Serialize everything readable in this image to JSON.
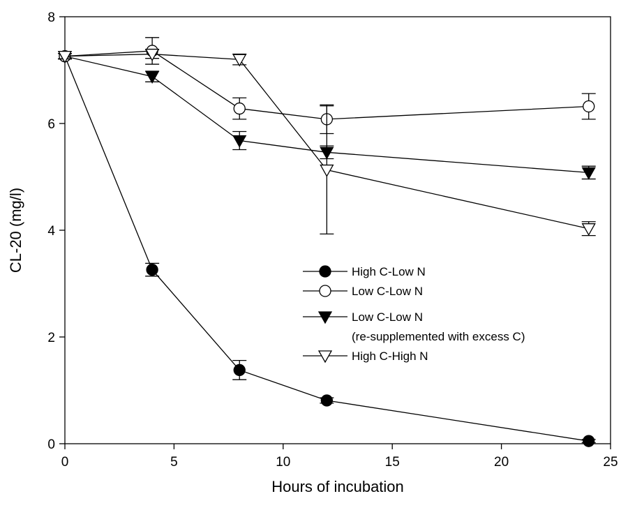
{
  "chart_data": {
    "type": "line",
    "title": "",
    "xlabel": "Hours of incubation",
    "ylabel": "CL-20 (mg/l)",
    "xlim": [
      0,
      25
    ],
    "ylim": [
      0,
      8
    ],
    "xticks": [
      0,
      5,
      10,
      15,
      20,
      25
    ],
    "yticks": [
      0,
      2,
      4,
      6,
      8
    ],
    "grid": false,
    "legend_position": "center-right",
    "series": [
      {
        "name": "High C-Low N",
        "marker": "circle-filled",
        "x": [
          0,
          4,
          8,
          12,
          24
        ],
        "y": [
          7.26,
          3.26,
          1.38,
          0.81,
          0.05
        ],
        "err": [
          0.05,
          0.12,
          0.18,
          0.05,
          0.03
        ]
      },
      {
        "name": "Low C-Low N",
        "marker": "circle-open",
        "x": [
          0,
          4,
          8,
          12,
          24
        ],
        "y": [
          7.26,
          7.36,
          6.28,
          6.08,
          6.32
        ],
        "err": [
          0.05,
          0.25,
          0.2,
          0.27,
          0.24
        ]
      },
      {
        "name": "Low C-Low N",
        "name_line2": "(re-supplemented with excess C)",
        "marker": "triangle-down-filled",
        "x": [
          0,
          4,
          8,
          12,
          24
        ],
        "y": [
          7.26,
          6.88,
          5.68,
          5.46,
          5.08
        ],
        "err": [
          0.05,
          0.1,
          0.17,
          0.12,
          0.12
        ]
      },
      {
        "name": "High C-High N",
        "marker": "triangle-down-open",
        "x": [
          0,
          4,
          8,
          12,
          24
        ],
        "y": [
          7.26,
          7.3,
          7.2,
          5.13,
          4.03
        ],
        "err": [
          0.05,
          0.08,
          0.1,
          1.2,
          0.13
        ]
      }
    ]
  }
}
